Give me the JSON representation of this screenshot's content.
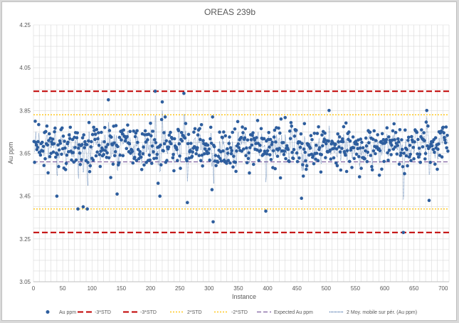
{
  "chart_data": {
    "type": "scatter",
    "title": "OREAS 239b",
    "xlabel": "Instance",
    "ylabel": "Au ppm",
    "xlim": [
      0,
      710
    ],
    "ylim": [
      3.05,
      4.25
    ],
    "x_ticks": [
      0,
      50,
      100,
      150,
      200,
      250,
      300,
      350,
      400,
      450,
      500,
      550,
      600,
      650,
      700
    ],
    "y_ticks": [
      "3.05",
      "3.25",
      "3.45",
      "3.65",
      "3.85",
      "4.05",
      "4.25"
    ],
    "grid": true,
    "legend_position": "bottom",
    "series": [
      {
        "name": "Au ppm",
        "kind": "points",
        "color": "#2e5e9e",
        "sample": "approx. 710 instances, values mostly 3.55–3.80 ppm",
        "outliers": [
          {
            "x": 3,
            "y": 3.8
          },
          {
            "x": 40,
            "y": 3.45
          },
          {
            "x": 76,
            "y": 3.39
          },
          {
            "x": 85,
            "y": 3.4
          },
          {
            "x": 92,
            "y": 3.39
          },
          {
            "x": 128,
            "y": 3.9
          },
          {
            "x": 143,
            "y": 3.46
          },
          {
            "x": 208,
            "y": 3.94
          },
          {
            "x": 213,
            "y": 3.51
          },
          {
            "x": 216,
            "y": 3.45
          },
          {
            "x": 220,
            "y": 3.89
          },
          {
            "x": 257,
            "y": 3.93
          },
          {
            "x": 263,
            "y": 3.42
          },
          {
            "x": 305,
            "y": 3.48
          },
          {
            "x": 307,
            "y": 3.33
          },
          {
            "x": 397,
            "y": 3.38
          },
          {
            "x": 458,
            "y": 3.44
          },
          {
            "x": 505,
            "y": 3.85
          },
          {
            "x": 632,
            "y": 3.28
          },
          {
            "x": 672,
            "y": 3.85
          },
          {
            "x": 676,
            "y": 3.43
          }
        ]
      },
      {
        "name": "-3*STD",
        "kind": "hline",
        "y": 3.94,
        "color": "#c00000",
        "dash": "8,4"
      },
      {
        "name": "-3*STD",
        "kind": "hline",
        "y": 3.28,
        "color": "#c00000",
        "dash": "8,4"
      },
      {
        "name": "2*STD",
        "kind": "hline",
        "y": 3.83,
        "color": "#ffc000",
        "dash": "2,2"
      },
      {
        "name": "-2*STD",
        "kind": "hline",
        "y": 3.39,
        "color": "#ffc000",
        "dash": "2,2"
      },
      {
        "name": "Expected Au ppm",
        "kind": "hline",
        "y": 3.61,
        "color": "#7f60a0",
        "dash": "6,3"
      },
      {
        "name": "2 Moy. mobile sur pér. (Au ppm)",
        "kind": "moving-average",
        "period": 2,
        "color": "#2e5e9e",
        "dash": "1,1"
      }
    ]
  }
}
